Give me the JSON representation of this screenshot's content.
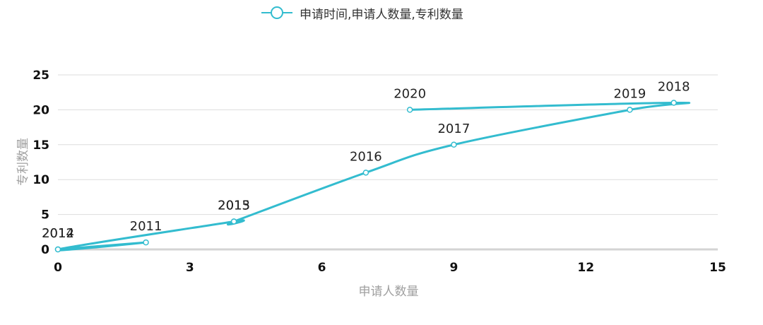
{
  "chart_data": {
    "type": "line",
    "xlabel": "申请人数量",
    "ylabel": "专利数量",
    "xlim": [
      0,
      15
    ],
    "ylim": [
      0,
      25
    ],
    "xticks": [
      "0",
      "3",
      "6",
      "9",
      "12",
      "15"
    ],
    "yticks": [
      "0",
      "5",
      "10",
      "15",
      "20",
      "25"
    ],
    "grid": true,
    "legend_position": "top-center",
    "series": [
      {
        "name": "申请时间,申请人数量,专利数量",
        "color": "#33bccf",
        "points": [
          {
            "x": 0,
            "y": 0,
            "label": "2012"
          },
          {
            "x": 2,
            "y": 1,
            "label": "2011"
          },
          {
            "x": 0,
            "y": 0,
            "label": "2014"
          },
          {
            "x": 4,
            "y": 4,
            "label": "2013"
          },
          {
            "x": 4,
            "y": 4,
            "label": "2015"
          },
          {
            "x": 7,
            "y": 11,
            "label": "2016"
          },
          {
            "x": 9,
            "y": 15,
            "label": "2017"
          },
          {
            "x": 13,
            "y": 20,
            "label": "2019"
          },
          {
            "x": 14,
            "y": 21,
            "label": "2018"
          },
          {
            "x": 8,
            "y": 20,
            "label": "2020"
          }
        ]
      }
    ]
  }
}
